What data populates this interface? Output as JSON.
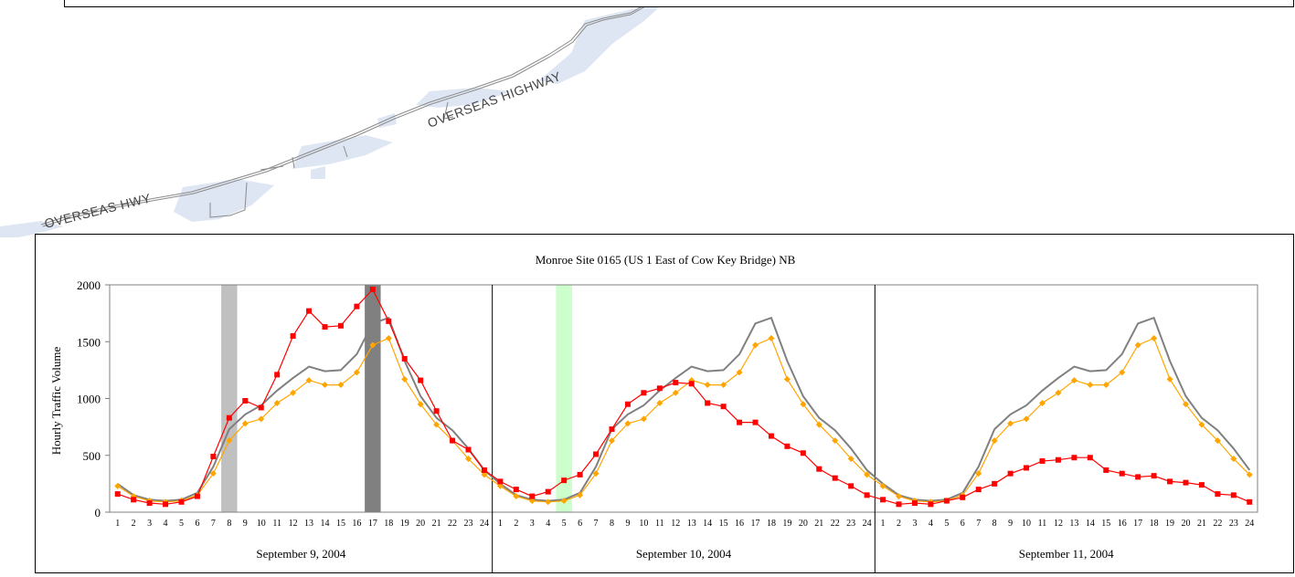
{
  "map": {
    "road_label_1": "OVERSEAS HIGHWAY",
    "road_label_2": "OVERSEAS HWY"
  },
  "chart_data": {
    "type": "line",
    "title": "Monroe Site 0165 (US 1 East of Cow Key Bridge) NB",
    "ylabel": "Hourly Traffic Volume",
    "xlabel": "",
    "ylim": [
      0,
      2000
    ],
    "yticks": [
      0,
      500,
      1000,
      1500,
      2000
    ],
    "grid": false,
    "legend": "none",
    "days": [
      "September 9, 2004",
      "September 10, 2004",
      "September 11, 2004"
    ],
    "hours": [
      1,
      2,
      3,
      4,
      5,
      6,
      7,
      8,
      9,
      10,
      11,
      12,
      13,
      14,
      15,
      16,
      17,
      18,
      19,
      20,
      21,
      22,
      23,
      24
    ],
    "highlight_bands": [
      {
        "day": 0,
        "hour": 8,
        "color": "#c0c0c0"
      },
      {
        "day": 0,
        "hour": 17,
        "color": "#808080"
      },
      {
        "day": 1,
        "hour": 5,
        "color": "#ccffcc"
      }
    ],
    "series": [
      {
        "color": "#808080",
        "marker": "none",
        "values": [
          250,
          150,
          110,
          100,
          110,
          170,
          400,
          730,
          860,
          940,
          1070,
          1180,
          1280,
          1240,
          1250,
          1390,
          1660,
          1710,
          1330,
          1020,
          830,
          720,
          560,
          370,
          250,
          150,
          110,
          100,
          110,
          170,
          400,
          730,
          860,
          940,
          1070,
          1180,
          1280,
          1240,
          1250,
          1390,
          1660,
          1710,
          1330,
          1020,
          830,
          720,
          560,
          370,
          250,
          150,
          110,
          100,
          110,
          170,
          400,
          730,
          860,
          940,
          1070,
          1180,
          1280,
          1240,
          1250,
          1390,
          1660,
          1710,
          1330,
          1020,
          830,
          720,
          560,
          370
        ]
      },
      {
        "color": "#ffa500",
        "marker": "diamond",
        "values": [
          230,
          140,
          100,
          90,
          100,
          150,
          340,
          630,
          780,
          820,
          960,
          1050,
          1160,
          1120,
          1120,
          1230,
          1470,
          1530,
          1170,
          950,
          770,
          630,
          470,
          330,
          230,
          140,
          100,
          90,
          100,
          150,
          340,
          630,
          780,
          820,
          960,
          1050,
          1160,
          1120,
          1120,
          1230,
          1470,
          1530,
          1170,
          950,
          770,
          630,
          470,
          330,
          230,
          140,
          100,
          90,
          100,
          150,
          340,
          630,
          780,
          820,
          960,
          1050,
          1160,
          1120,
          1120,
          1230,
          1470,
          1530,
          1170,
          950,
          770,
          630,
          470,
          330
        ]
      },
      {
        "color": "#ff0000",
        "marker": "square",
        "values": [
          160,
          110,
          80,
          70,
          90,
          140,
          490,
          830,
          980,
          920,
          1210,
          1550,
          1770,
          1630,
          1640,
          1810,
          1960,
          1680,
          1350,
          1160,
          890,
          630,
          550,
          370,
          270,
          200,
          140,
          180,
          280,
          330,
          510,
          730,
          950,
          1050,
          1090,
          1140,
          1130,
          960,
          930,
          790,
          790,
          670,
          580,
          520,
          380,
          300,
          230,
          150,
          110,
          70,
          80,
          70,
          100,
          130,
          200,
          250,
          340,
          390,
          450,
          460,
          480,
          480,
          370,
          340,
          310,
          320,
          270,
          260,
          240,
          160,
          150,
          90
        ]
      }
    ]
  }
}
